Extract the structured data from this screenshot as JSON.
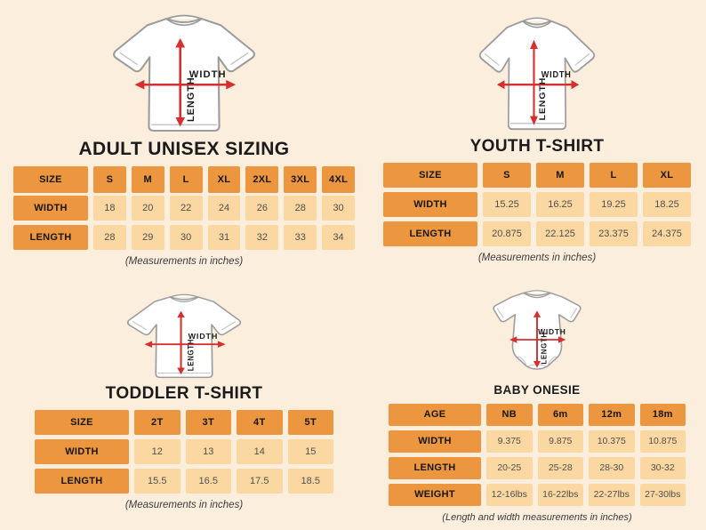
{
  "colors": {
    "background": "#fbeedd",
    "header_cell_orange": "#ec9640",
    "value_cell_peach": "#fbd8a1",
    "arrow_red": "#d62f2f",
    "title_text": "#1b1b1b",
    "value_text": "#4f4f4f",
    "shirt_outline": "#9b9b9b"
  },
  "diagram_labels": {
    "width": "WIDTH",
    "length": "LENGTH"
  },
  "icons": {
    "adult": "tshirt-front-icon",
    "youth": "tshirt-front-icon",
    "toddler": "tshirt-front-icon",
    "baby": "onesie-front-icon"
  },
  "chart_data": [
    {
      "type": "table",
      "title": "ADULT UNISEX SIZING",
      "header_label": "SIZE",
      "columns": [
        "S",
        "M",
        "L",
        "XL",
        "2XL",
        "3XL",
        "4XL"
      ],
      "rows": [
        {
          "label": "WIDTH",
          "values": [
            "18",
            "20",
            "22",
            "24",
            "26",
            "28",
            "30"
          ]
        },
        {
          "label": "LENGTH",
          "values": [
            "28",
            "29",
            "30",
            "31",
            "32",
            "33",
            "34"
          ]
        }
      ],
      "note": "(Measurements in inches)"
    },
    {
      "type": "table",
      "title": "YOUTH T-SHIRT",
      "header_label": "SIZE",
      "columns": [
        "S",
        "M",
        "L",
        "XL"
      ],
      "rows": [
        {
          "label": "WIDTH",
          "values": [
            "15.25",
            "16.25",
            "19.25",
            "18.25"
          ]
        },
        {
          "label": "LENGTH",
          "values": [
            "20.875",
            "22.125",
            "23.375",
            "24.375"
          ]
        }
      ],
      "note": "(Measurements in inches)"
    },
    {
      "type": "table",
      "title": "TODDLER T-SHIRT",
      "header_label": "SIZE",
      "columns": [
        "2T",
        "3T",
        "4T",
        "5T"
      ],
      "rows": [
        {
          "label": "WIDTH",
          "values": [
            "12",
            "13",
            "14",
            "15"
          ]
        },
        {
          "label": "LENGTH",
          "values": [
            "15.5",
            "16.5",
            "17.5",
            "18.5"
          ]
        }
      ],
      "note": "(Measurements in inches)"
    },
    {
      "type": "table",
      "title": "BABY ONESIE",
      "header_label": "AGE",
      "columns": [
        "NB",
        "6m",
        "12m",
        "18m"
      ],
      "rows": [
        {
          "label": "WIDTH",
          "values": [
            "9.375",
            "9.875",
            "10.375",
            "10.875"
          ]
        },
        {
          "label": "LENGTH",
          "values": [
            "20-25",
            "25-28",
            "28-30",
            "30-32"
          ]
        },
        {
          "label": "WEIGHT",
          "values": [
            "12-16lbs",
            "16-22lbs",
            "22-27lbs",
            "27-30lbs"
          ]
        }
      ],
      "note": "(Length and width measurements in inches)"
    }
  ]
}
